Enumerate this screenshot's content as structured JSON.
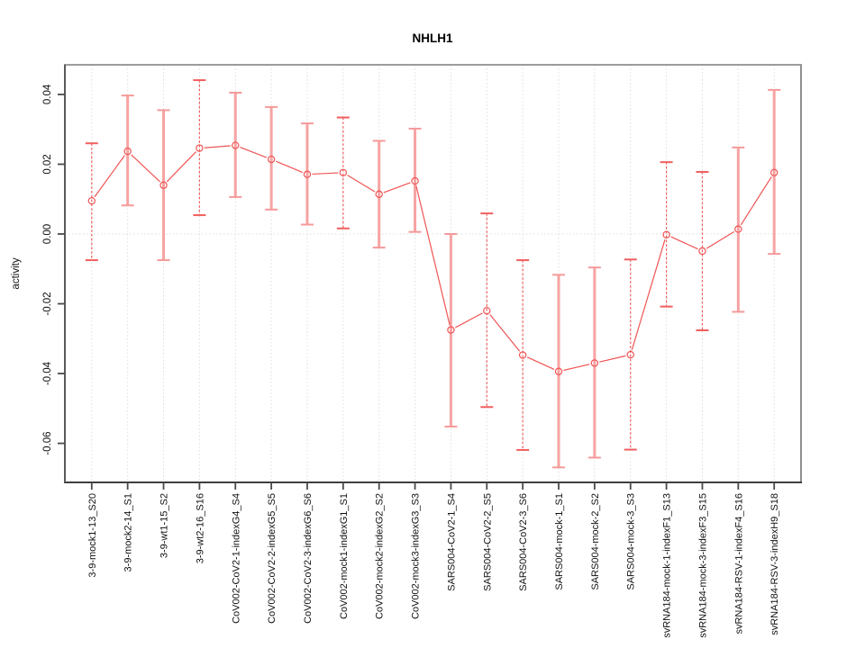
{
  "title": "NHLH1",
  "axes": {
    "y_label": "activity",
    "y_tick_labels": [
      "0.04",
      "0.02",
      "0.00",
      "-0.02",
      "-0.04",
      "-0.06"
    ],
    "y_tick_values": [
      0.04,
      0.02,
      0.0,
      -0.02,
      -0.04,
      -0.06
    ]
  },
  "colors": {
    "series_red": "#f05454",
    "stem_thick_pink": "#f7a3a3",
    "cap_thick_pink": "#f59a9a",
    "stem_thin_red": "#f15f5f",
    "gridline_gray": "#dedede",
    "frame_top": "#9c9c9c",
    "frame_right": "#8f8f8f",
    "frame_bottom": "#3f3f3f",
    "frame_left": "#595959",
    "tick_color": "#4a4a4a",
    "text_color": "#111111"
  },
  "chart_data": {
    "type": "line",
    "title": "NHLH1",
    "xlabel": "",
    "ylabel": "activity",
    "ylim": [
      -0.0712,
      0.0485
    ],
    "grid": "vertical dotted gridline at each category; dotted horizontal line at y=0 only",
    "legend": "none",
    "marker": "open-circle",
    "error_bars": true,
    "categories": [
      "3-9-mock1-13_S20",
      "3-9-mock2-14_S1",
      "3-9-wt1-15_S2",
      "3-9-wt2-16_S16",
      "CoV002-CoV2-1-indexG4_S4",
      "CoV002-CoV2-2-indexG5_S5",
      "CoV002-CoV2-3-indexG6_S6",
      "CoV002-mock1-indexG1_S1",
      "CoV002-mock2-indexG2_S2",
      "CoV002-mock3-indexG3_S3",
      "SARS004-CoV2-1_S4",
      "SARS004-CoV2-2_S5",
      "SARS004-CoV2-3_S6",
      "SARS004-mock-1_S1",
      "SARS004-mock-2_S2",
      "SARS004-mock-3_S3",
      "svRNA184-mock-1-indexF1_S13",
      "svRNA184-mock-3-indexF3_S15",
      "svRNA184-RSV-1-indexF4_S16",
      "svRNA184-RSV-3-indexH9_S18"
    ],
    "series": [
      {
        "name": "activity",
        "values": [
          0.0095,
          0.0237,
          0.014,
          0.0246,
          0.0254,
          0.0214,
          0.0171,
          0.0176,
          0.0114,
          0.0152,
          -0.0275,
          -0.022,
          -0.0347,
          -0.0394,
          -0.037,
          -0.0346,
          -0.0002,
          -0.0049,
          0.0014,
          0.0176
        ]
      }
    ],
    "error_low": [
      -0.0075,
      0.0082,
      -0.0075,
      0.0054,
      0.0106,
      0.007,
      0.0027,
      0.0016,
      -0.0039,
      0.0006,
      -0.0552,
      -0.0496,
      -0.0619,
      -0.0669,
      -0.0641,
      -0.0618,
      -0.0208,
      -0.0276,
      -0.0223,
      -0.0057
    ],
    "error_high": [
      0.026,
      0.0397,
      0.0355,
      0.0441,
      0.0405,
      0.0364,
      0.0317,
      0.0334,
      0.0267,
      0.0302,
      0.0,
      0.0059,
      -0.0075,
      -0.0117,
      -0.0096,
      -0.0073,
      0.0206,
      0.0178,
      0.0248,
      0.0413
    ],
    "stem_styles": [
      "thin",
      "thick",
      "thick",
      "thin",
      "thick",
      "thick",
      "thick",
      "thin",
      "thick",
      "thick",
      "thick",
      "thin",
      "thin",
      "thick",
      "thick",
      "thin",
      "thin",
      "thin",
      "thick",
      "thick"
    ]
  }
}
